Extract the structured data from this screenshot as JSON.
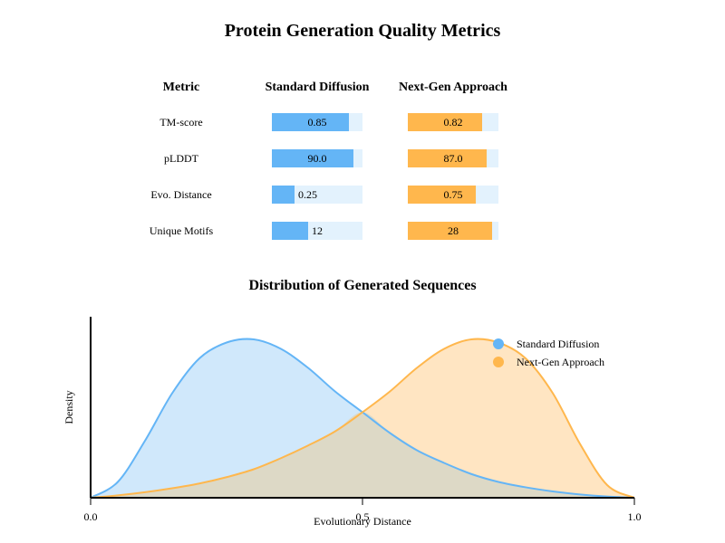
{
  "title": "Protein Generation Quality Metrics",
  "table": {
    "headers": [
      "Metric",
      "Standard Diffusion",
      "Next-Gen Approach"
    ],
    "rows": [
      {
        "metric": "TM-score",
        "standard": {
          "label": "0.85",
          "fraction": 0.85
        },
        "nextgen": {
          "label": "0.82",
          "fraction": 0.82
        }
      },
      {
        "metric": "pLDDT",
        "standard": {
          "label": "90.0",
          "fraction": 0.9
        },
        "nextgen": {
          "label": "87.0",
          "fraction": 0.87
        }
      },
      {
        "metric": "Evo. Distance",
        "standard": {
          "label": "0.25",
          "fraction": 0.25
        },
        "nextgen": {
          "label": "0.75",
          "fraction": 0.75
        }
      },
      {
        "metric": "Unique Motifs",
        "standard": {
          "label": "12",
          "fraction": 0.4
        },
        "nextgen": {
          "label": "28",
          "fraction": 0.93
        }
      }
    ]
  },
  "colors": {
    "standard": "#64b5f6",
    "standard_fill": "#d0e8fb",
    "nextgen": "#ffb74d",
    "nextgen_fill": "#ffe5c2",
    "overlap_fill": "#ddd9c6",
    "track": "#e3f2fd"
  },
  "chart_data": {
    "type": "area",
    "title": "Distribution of Generated Sequences",
    "xlabel": "Evolutionary Distance",
    "ylabel": "Density",
    "xlim": [
      0,
      1
    ],
    "ylim": [
      0,
      1.05
    ],
    "xticks": [
      {
        "value": 0,
        "label": "0.0"
      },
      {
        "value": 0.5,
        "label": "0.5"
      },
      {
        "value": 1,
        "label": "1.0"
      }
    ],
    "legend_position": "top-right",
    "series": [
      {
        "name": "Standard Diffusion",
        "x": [
          0,
          0.05,
          0.1,
          0.15,
          0.2,
          0.25,
          0.3,
          0.35,
          0.4,
          0.45,
          0.5,
          0.55,
          0.6,
          0.65,
          0.7,
          0.75,
          0.8,
          0.85,
          0.9,
          0.95,
          1.0
        ],
        "y": [
          0,
          0.1,
          0.36,
          0.66,
          0.88,
          0.98,
          1.0,
          0.94,
          0.82,
          0.67,
          0.54,
          0.41,
          0.3,
          0.22,
          0.15,
          0.1,
          0.066,
          0.04,
          0.021,
          0.008,
          0
        ]
      },
      {
        "name": "Next-Gen Approach",
        "x": [
          0,
          0.05,
          0.1,
          0.15,
          0.2,
          0.25,
          0.3,
          0.35,
          0.4,
          0.45,
          0.5,
          0.55,
          0.6,
          0.65,
          0.7,
          0.75,
          0.8,
          0.85,
          0.9,
          0.95,
          1.0
        ],
        "y": [
          0,
          0.015,
          0.035,
          0.06,
          0.09,
          0.13,
          0.18,
          0.25,
          0.33,
          0.42,
          0.54,
          0.67,
          0.82,
          0.94,
          1.0,
          0.98,
          0.88,
          0.66,
          0.34,
          0.08,
          0
        ]
      }
    ]
  }
}
